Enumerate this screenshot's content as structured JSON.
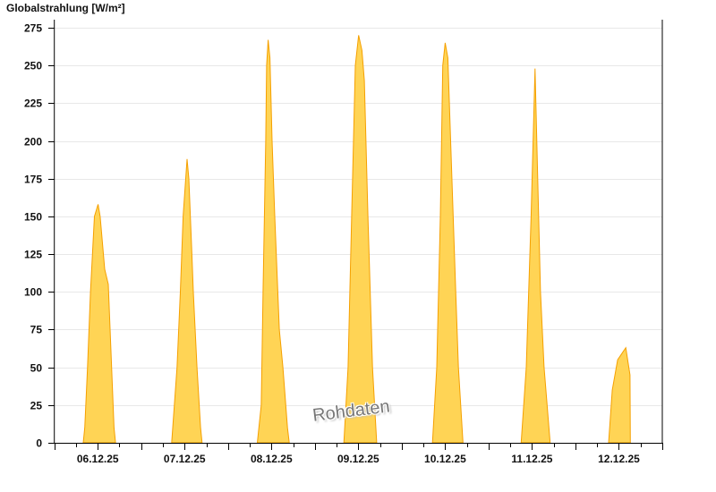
{
  "chart_data": {
    "type": "area",
    "title": "Globalstrahlung [W/m²]",
    "xlabel": "",
    "ylabel": "",
    "ylim": [
      0,
      275
    ],
    "yticks": [
      0,
      25,
      50,
      75,
      100,
      125,
      150,
      175,
      200,
      225,
      250,
      275
    ],
    "xrange": [
      "06.12.25 00:00",
      "13.12.25 00:00"
    ],
    "xtick_labels": [
      "06.12.25",
      "07.12.25",
      "08.12.25",
      "09.12.25",
      "10.12.25",
      "11.12.25",
      "12.12.25"
    ],
    "grid": true,
    "watermark": "Rohdaten",
    "colors": {
      "fill": "#ffd455",
      "line": "#f5a000",
      "grid": "#e8e8e8"
    },
    "points": [
      [
        "06.12.25 08:00",
        0
      ],
      [
        "06.12.25 08:25",
        10
      ],
      [
        "06.12.25 09:10",
        50
      ],
      [
        "06.12.25 10:00",
        100
      ],
      [
        "06.12.25 11:05",
        150
      ],
      [
        "06.12.25 12:05",
        158
      ],
      [
        "06.12.25 12:40",
        150
      ],
      [
        "06.12.25 13:55",
        115
      ],
      [
        "06.12.25 14:55",
        105
      ],
      [
        "06.12.25 15:50",
        50
      ],
      [
        "06.12.25 16:30",
        10
      ],
      [
        "06.12.25 16:55",
        0
      ],
      [
        "07.12.25 08:25",
        0
      ],
      [
        "07.12.25 09:55",
        50
      ],
      [
        "07.12.25 10:50",
        100
      ],
      [
        "07.12.25 11:35",
        150
      ],
      [
        "07.12.25 12:40",
        188
      ],
      [
        "07.12.25 13:10",
        175
      ],
      [
        "07.12.25 14:00",
        125
      ],
      [
        "07.12.25 14:25",
        100
      ],
      [
        "07.12.25 15:25",
        50
      ],
      [
        "07.12.25 16:25",
        10
      ],
      [
        "07.12.25 16:50",
        0
      ],
      [
        "08.12.25 08:05",
        0
      ],
      [
        "08.12.25 09:10",
        25
      ],
      [
        "08.12.25 09:40",
        100
      ],
      [
        "08.12.25 10:25",
        200
      ],
      [
        "08.12.25 10:40",
        250
      ],
      [
        "08.12.25 11:05",
        267
      ],
      [
        "08.12.25 11:35",
        255
      ],
      [
        "08.12.25 12:10",
        200
      ],
      [
        "08.12.25 12:55",
        150
      ],
      [
        "08.12.25 14:10",
        75
      ],
      [
        "08.12.25 15:10",
        50
      ],
      [
        "08.12.25 16:25",
        10
      ],
      [
        "08.12.25 16:55",
        0
      ],
      [
        "09.12.25 08:00",
        0
      ],
      [
        "09.12.25 09:10",
        50
      ],
      [
        "09.12.25 10:10",
        150
      ],
      [
        "09.12.25 11:10",
        250
      ],
      [
        "09.12.25 12:05",
        270
      ],
      [
        "09.12.25 13:00",
        260
      ],
      [
        "09.12.25 13:40",
        240
      ],
      [
        "09.12.25 14:40",
        150
      ],
      [
        "09.12.25 15:55",
        50
      ],
      [
        "09.12.25 17:05",
        0
      ],
      [
        "10.12.25 08:30",
        0
      ],
      [
        "10.12.25 09:40",
        50
      ],
      [
        "10.12.25 10:40",
        150
      ],
      [
        "10.12.25 11:20",
        250
      ],
      [
        "10.12.25 12:00",
        265
      ],
      [
        "10.12.25 12:45",
        255
      ],
      [
        "10.12.25 13:30",
        200
      ],
      [
        "10.12.25 14:55",
        100
      ],
      [
        "10.12.25 15:40",
        50
      ],
      [
        "10.12.25 16:55",
        0
      ],
      [
        "11.12.25 09:00",
        0
      ],
      [
        "11.12.25 10:25",
        50
      ],
      [
        "11.12.25 11:45",
        150
      ],
      [
        "11.12.25 12:50",
        248
      ],
      [
        "11.12.25 13:35",
        175
      ],
      [
        "11.12.25 14:20",
        100
      ],
      [
        "11.12.25 15:20",
        50
      ],
      [
        "11.12.25 17:00",
        0
      ],
      [
        "12.12.25 09:10",
        0
      ],
      [
        "12.12.25 10:10",
        35
      ],
      [
        "12.12.25 11:40",
        55
      ],
      [
        "12.12.25 13:55",
        63
      ],
      [
        "12.12.25 15:05",
        45
      ],
      [
        "12.12.25 15:10",
        0
      ]
    ]
  }
}
